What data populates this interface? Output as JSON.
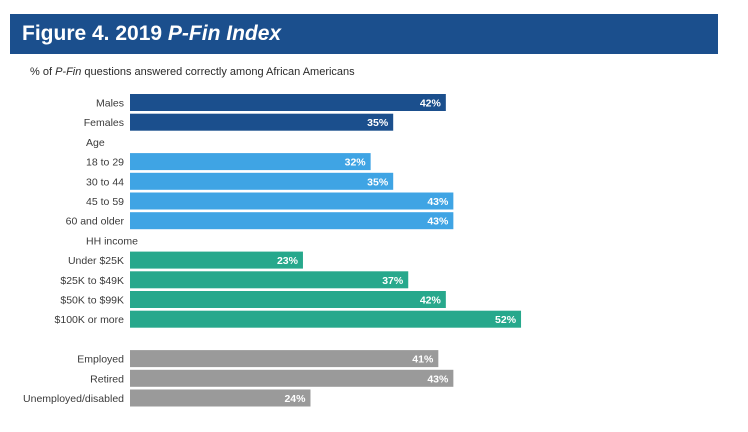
{
  "header": {
    "title_prefix": "Figure 4. 2019 ",
    "title_italic": "P-Fin Index"
  },
  "subtitle": {
    "prefix": "% of ",
    "italic": "P-Fin",
    "suffix": " questions answered correctly among African Americans"
  },
  "colors": {
    "title_bg": "#1b4f8d",
    "gender": "#1b4f8d",
    "age": "#3fa4e4",
    "income": "#27a88c",
    "employment": "#9a9a9a"
  },
  "chart_data": {
    "type": "bar",
    "orientation": "horizontal",
    "title": "Figure 4. 2019 P-Fin Index",
    "subtitle": "% of P-Fin questions answered correctly among African Americans",
    "unit": "%",
    "rows": [
      {
        "label": "Males",
        "value": 42,
        "group": "gender"
      },
      {
        "label": "Females",
        "value": 35,
        "group": "gender"
      },
      {
        "label": "Age",
        "value": null,
        "group": "header"
      },
      {
        "label": "18 to 29",
        "value": 32,
        "group": "age"
      },
      {
        "label": "30 to 44",
        "value": 35,
        "group": "age"
      },
      {
        "label": "45 to 59",
        "value": 43,
        "group": "age"
      },
      {
        "label": "60 and older",
        "value": 43,
        "group": "age"
      },
      {
        "label": "HH income",
        "value": null,
        "group": "header"
      },
      {
        "label": "Under $25K",
        "value": 23,
        "group": "income"
      },
      {
        "label": "$25K to $49K",
        "value": 37,
        "group": "income"
      },
      {
        "label": "$50K to $99K",
        "value": 42,
        "group": "income"
      },
      {
        "label": "$100K or more",
        "value": 52,
        "group": "income"
      },
      {
        "label": "",
        "value": null,
        "group": "spacer"
      },
      {
        "label": "Employed",
        "value": 41,
        "group": "employment"
      },
      {
        "label": "Retired",
        "value": 43,
        "group": "employment"
      },
      {
        "label": "Unemployed/disabled",
        "value": 24,
        "group": "employment"
      }
    ]
  }
}
